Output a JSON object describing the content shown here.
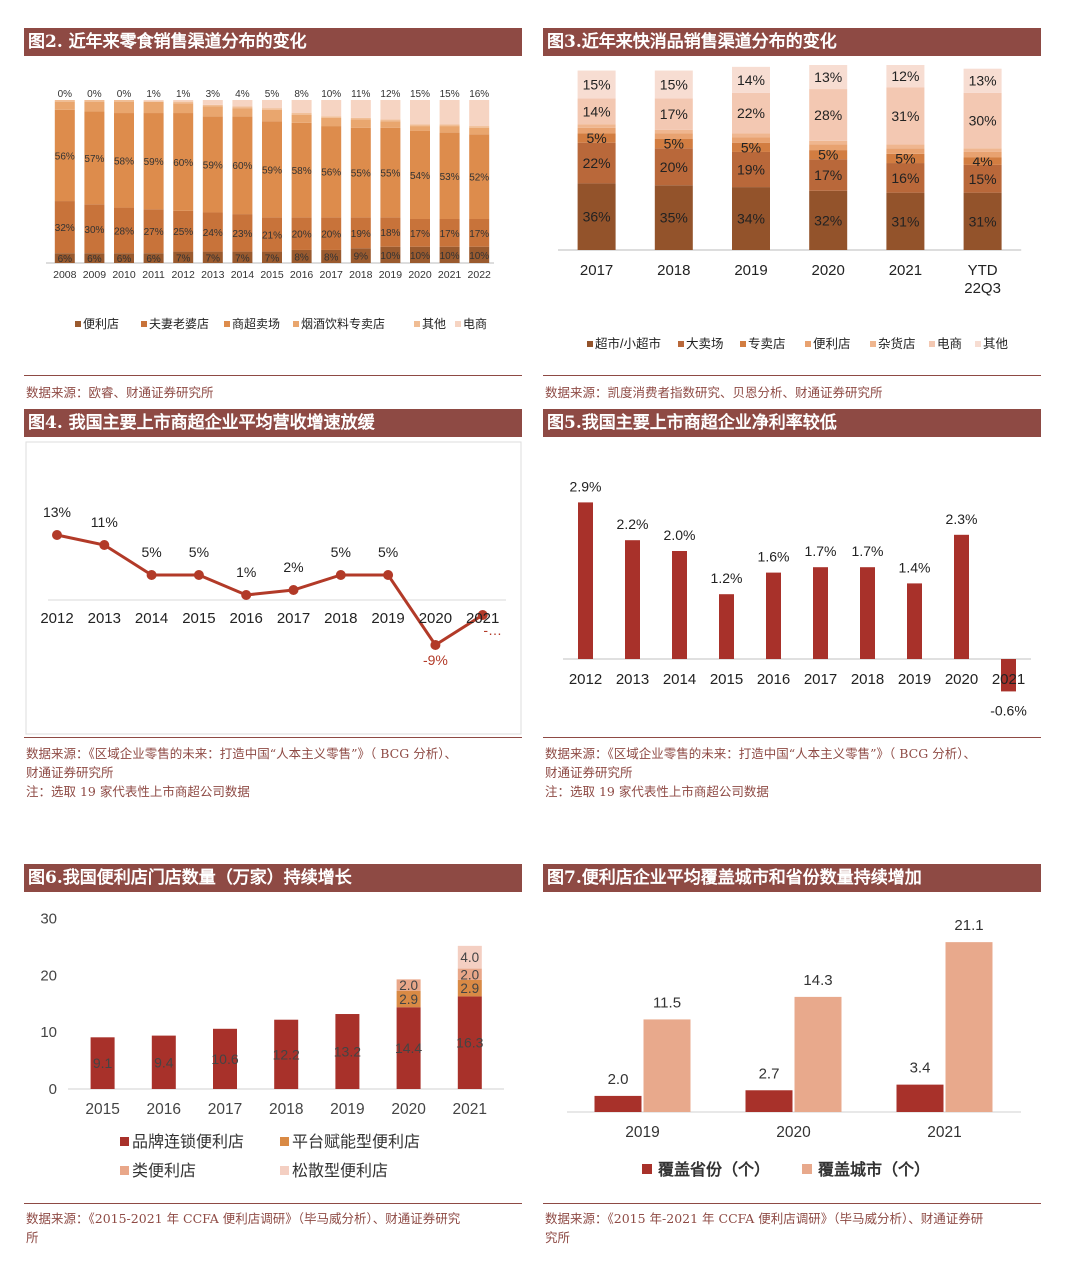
{
  "charts": {
    "fig2": {
      "title": "图2. 近年来零食销售渠道分布的变化",
      "source": "数据来源：欧睿、财通证券研究所",
      "chart_data": {
        "type": "bar",
        "stacked": true,
        "categories": [
          "2008",
          "2009",
          "2010",
          "2011",
          "2012",
          "2013",
          "2014",
          "2015",
          "2016",
          "2017",
          "2018",
          "2019",
          "2020",
          "2021",
          "2022"
        ],
        "series": [
          {
            "name": "便利店",
            "color": "#9a5a2e",
            "values": [
              6,
              6,
              6,
              6,
              7,
              7,
              7,
              7,
              8,
              8,
              9,
              10,
              10,
              10,
              10
            ]
          },
          {
            "name": "夫妻老婆店",
            "color": "#c8733a",
            "values": [
              32,
              30,
              28,
              27,
              25,
              24,
              23,
              21,
              20,
              20,
              19,
              18,
              17,
              17,
              17
            ]
          },
          {
            "name": "商超卖场",
            "color": "#dd8c4c",
            "values": [
              56,
              57,
              58,
              59,
              60,
              59,
              60,
              59,
              58,
              56,
              55,
              55,
              54,
              53,
              52
            ]
          },
          {
            "name": "烟酒饮料专卖店",
            "color": "#e9a66e",
            "values": [
              5,
              6,
              7,
              7,
              6,
              6,
              5,
              7,
              5,
              5,
              5,
              4,
              3,
              4,
              4
            ]
          },
          {
            "name": "其他",
            "color": "#f0bd94",
            "values": [
              1,
              1,
              1,
              0,
              1,
              1,
              1,
              1,
              1,
              1,
              1,
              1,
              1,
              1,
              1
            ]
          },
          {
            "name": "电商",
            "color": "#f6d4c2",
            "values": [
              0,
              0,
              0,
              1,
              1,
              3,
              4,
              5,
              8,
              10,
              11,
              12,
              15,
              15,
              16
            ]
          }
        ],
        "labeled_series": [
          0,
          1,
          2,
          5
        ],
        "ylim": [
          0,
          100
        ]
      }
    },
    "fig3": {
      "title": "图3.近年来快消品销售渠道分布的变化",
      "source": "数据来源：凯度消费者指数研究、贝恩分析、财通证券研究所",
      "chart_data": {
        "type": "bar",
        "stacked": true,
        "categories": [
          "2017",
          "2018",
          "2019",
          "2020",
          "2021",
          "YTD\n22Q3"
        ],
        "series": [
          {
            "name": "超市/小超市",
            "color": "#93532b",
            "values": [
              36,
              35,
              34,
              32,
              31,
              31
            ]
          },
          {
            "name": "大卖场",
            "color": "#b9683a",
            "values": [
              22,
              20,
              19,
              17,
              16,
              15
            ]
          },
          {
            "name": "专卖店",
            "color": "#d27d41",
            "values": [
              5,
              5,
              5,
              5,
              5,
              4
            ]
          },
          {
            "name": "便利店",
            "color": "#e8a270",
            "values": [
              3,
              3,
              3,
              3,
              3,
              3
            ]
          },
          {
            "name": "杂货店",
            "color": "#efb68f",
            "values": [
              2,
              2,
              2,
              2,
              2,
              2
            ]
          },
          {
            "name": "电商",
            "color": "#f3c8b2",
            "values": [
              14,
              17,
              22,
              28,
              31,
              30
            ]
          },
          {
            "name": "其他",
            "color": "#f7ddd2",
            "values": [
              15,
              15,
              14,
              13,
              12,
              13
            ]
          }
        ],
        "labeled_series": [
          0,
          1,
          2,
          5,
          6
        ],
        "ylim": [
          0,
          100
        ]
      }
    },
    "fig4": {
      "title": "图4. 我国主要上市商超企业平均营收增速放缓",
      "source_lines": [
        "数据来源：《区域企业零售的未来：打造中国“人本主义零售”》（ BCG 分析）、",
        "财通证券研究所",
        "注：选取 19 家代表性上市商超公司数据"
      ],
      "chart_data": {
        "type": "line",
        "x": [
          "2012",
          "2013",
          "2014",
          "2015",
          "2016",
          "2017",
          "2018",
          "2019",
          "2020",
          "2021"
        ],
        "y": [
          13,
          11,
          5,
          5,
          1,
          2,
          5,
          5,
          -9,
          -3
        ],
        "labels": [
          "13%",
          "11%",
          "5%",
          "5%",
          "1%",
          "2%",
          "5%",
          "5%",
          "-9%",
          "-…"
        ],
        "color": "#b23a28",
        "ylim": [
          -10,
          15
        ]
      }
    },
    "fig5": {
      "title": "图5.我国主要上市商超企业净利率较低",
      "source_lines": [
        "数据来源：《区域企业零售的未来：打造中国“人本主义零售”》（ BCG 分析）、",
        "财通证券研究所",
        "注：选取 19 家代表性上市商超公司数据"
      ],
      "chart_data": {
        "type": "bar",
        "categories": [
          "2012",
          "2013",
          "2014",
          "2015",
          "2016",
          "2017",
          "2018",
          "2019",
          "2020",
          "2021"
        ],
        "values": [
          2.9,
          2.2,
          2.0,
          1.2,
          1.6,
          1.7,
          1.7,
          1.4,
          2.3,
          -0.6
        ],
        "labels": [
          "2.9%",
          "2.2%",
          "2.0%",
          "1.2%",
          "1.6%",
          "1.7%",
          "1.7%",
          "1.4%",
          "2.3%",
          "-0.6%"
        ],
        "color": "#a8312a",
        "ylim": [
          -0.6,
          2.9
        ]
      }
    },
    "fig6": {
      "title": "图6.我国便利店门店数量（万家）持续增长",
      "source_lines": [
        "数据来源：《2015-2021 年 CCFA 便利店调研》（毕马威分析）、财通证券研究",
        "所"
      ],
      "chart_data": {
        "type": "bar",
        "stacked": true,
        "categories": [
          "2015",
          "2016",
          "2017",
          "2018",
          "2019",
          "2020",
          "2021"
        ],
        "yticks": [
          "0",
          "10",
          "20",
          "30"
        ],
        "ylim": [
          0,
          30
        ],
        "series": [
          {
            "name": "品牌连锁便利店",
            "color": "#a8312a",
            "values": [
              9.1,
              9.4,
              10.6,
              12.2,
              13.2,
              14.4,
              16.3
            ],
            "labels": [
              "9.1",
              "9.4",
              "10.6",
              "12.2",
              "13.2",
              "14.4",
              "16.3"
            ]
          },
          {
            "name": "平台赋能型便利店",
            "color": "#d98a45",
            "values": [
              0,
              0,
              0,
              0,
              0,
              2.9,
              2.9
            ],
            "labels": [
              "",
              "",
              "",
              "",
              "",
              "2.9",
              "2.9"
            ]
          },
          {
            "name": "类便利店",
            "color": "#e9a789",
            "values": [
              0,
              0,
              0,
              0,
              0,
              2.0,
              2.0
            ],
            "labels": [
              "",
              "",
              "",
              "",
              "",
              "2.0",
              "2.0"
            ]
          },
          {
            "name": "松散型便利店",
            "color": "#f4cfc2",
            "values": [
              0,
              0,
              0,
              0,
              0,
              0,
              4.0
            ],
            "labels": [
              "",
              "",
              "",
              "",
              "",
              "",
              "4.0"
            ]
          }
        ]
      }
    },
    "fig7": {
      "title": "图7.便利店企业平均覆盖城市和省份数量持续增加",
      "source_lines": [
        "数据来源：《2015 年-2021 年 CCFA 便利店调研》（毕马威分析）、财通证券研",
        "究所"
      ],
      "chart_data": {
        "type": "bar",
        "categories": [
          "2019",
          "2020",
          "2021"
        ],
        "series": [
          {
            "name": "覆盖省份（个）",
            "color": "#a8312a",
            "values": [
              2.0,
              2.7,
              3.4
            ],
            "labels": [
              "2.0",
              "2.7",
              "3.4"
            ]
          },
          {
            "name": "覆盖城市（个）",
            "color": "#e8a98c",
            "values": [
              11.5,
              14.3,
              21.1
            ],
            "labels": [
              "11.5",
              "14.3",
              "21.1"
            ]
          }
        ],
        "ylim": [
          0,
          22
        ]
      }
    }
  }
}
